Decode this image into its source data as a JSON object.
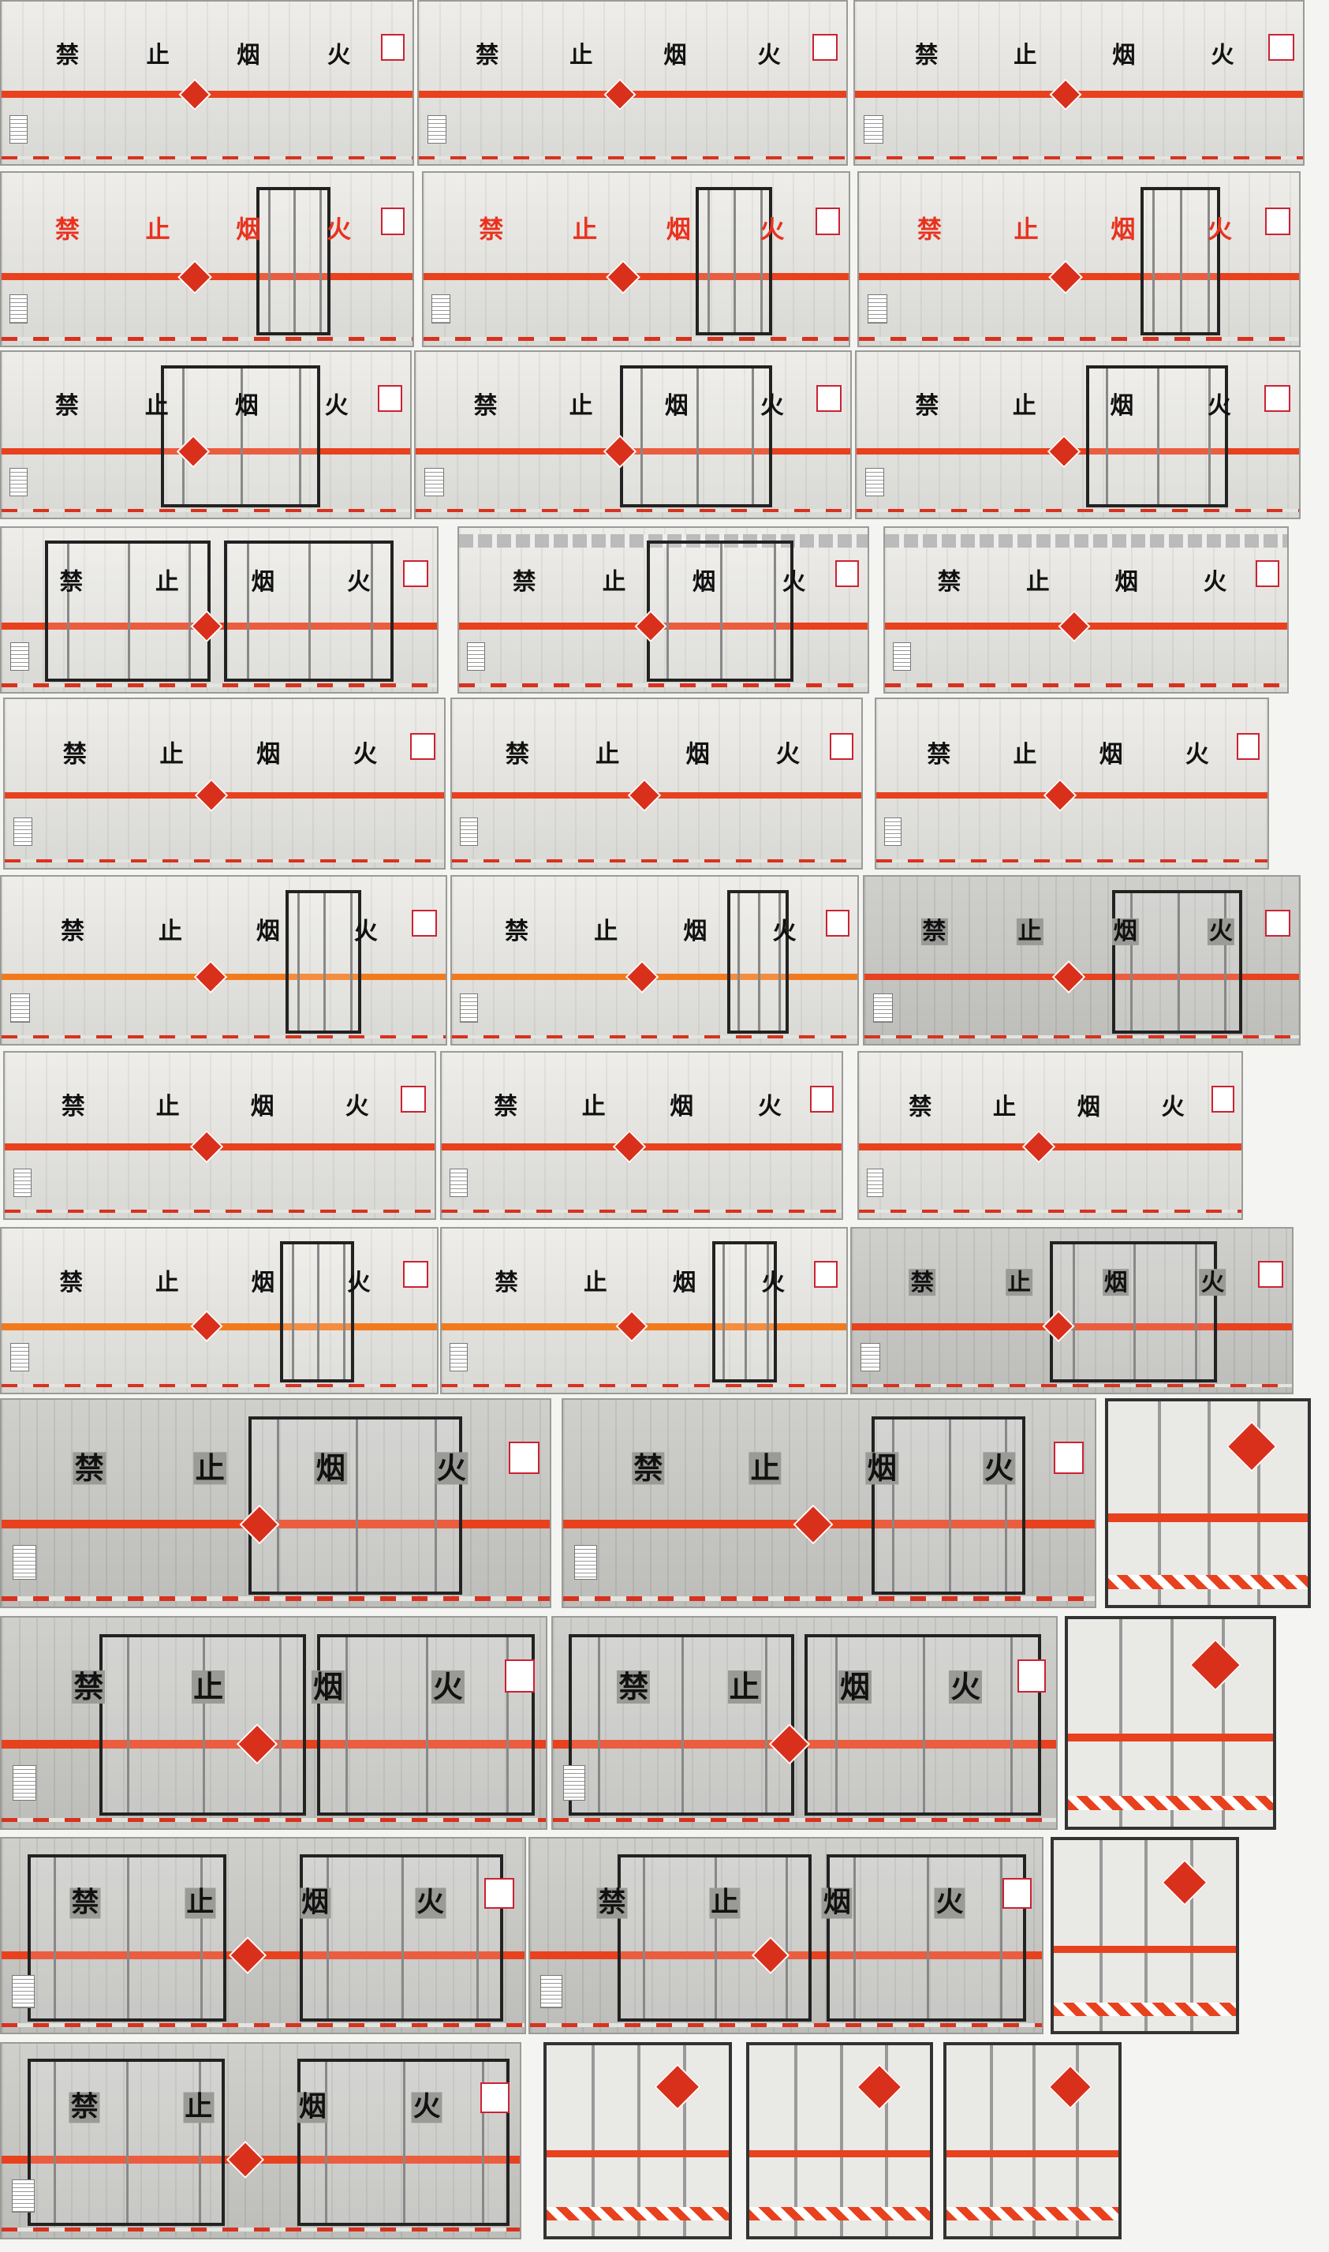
{
  "sign": {
    "chars": [
      "禁",
      "止",
      "烟",
      "火"
    ],
    "text_colors": {
      "black": "#111111",
      "red": "#e8321e"
    }
  },
  "colors": {
    "stripe": "#e8411e",
    "stripe_orange": "#f27a1e",
    "hazard_diamond": "#d9301c",
    "panel": "#e9e9e6"
  }
}
